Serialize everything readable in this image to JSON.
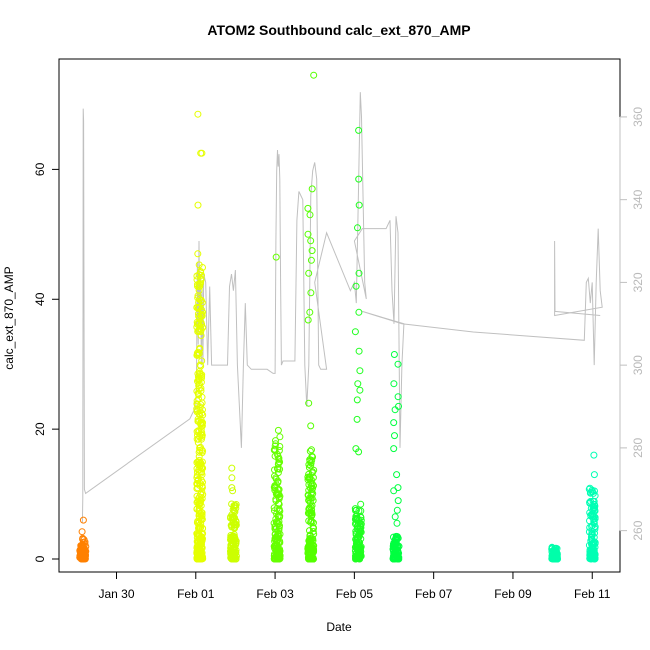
{
  "chart_data": {
    "type": "scatter",
    "title": "ATOM2 Southbound calc_ext_870_AMP",
    "xlabel": "Date",
    "ylabel": "calc_ext_870_AMP",
    "x_tick_labels": [
      "Jan 30",
      "Feb 01",
      "Feb 03",
      "Feb 05",
      "Feb 07",
      "Feb 09",
      "Feb 11"
    ],
    "x_tick_days": [
      0,
      2,
      4,
      6,
      8,
      10,
      12
    ],
    "x_range_days": [
      -1.45,
      12.7
    ],
    "ylim": [
      -2,
      77
    ],
    "y_ticks": [
      0,
      20,
      40,
      60
    ],
    "right_axis": {
      "ylim": [
        250,
        374
      ],
      "ticks": [
        260,
        280,
        300,
        320,
        340,
        360
      ],
      "color": "#c0c0c0"
    },
    "clusters": [
      {
        "day": -0.85,
        "width": 0.18,
        "color": "#ff8000",
        "dense_max": 3.2,
        "outliers": [
          6.0,
          4.2
        ]
      },
      {
        "day": 2.1,
        "width": 0.25,
        "color": "#e5ff00",
        "dense_max": 46,
        "outliers": [
          68.5,
          62.5,
          62.5,
          54.5,
          47,
          43,
          40,
          39.5,
          20.5
        ]
      },
      {
        "day": 2.95,
        "width": 0.25,
        "color": "#ccff00",
        "dense_max": 9,
        "outliers": [
          14,
          12.5,
          11,
          10.5
        ]
      },
      {
        "day": 4.05,
        "width": 0.2,
        "color": "#66ff00",
        "dense_max": 19,
        "outliers": [
          19.8,
          46.5
        ]
      },
      {
        "day": 4.9,
        "width": 0.3,
        "color": "#55ff00",
        "dense_max": 17,
        "outliers": [
          74.5,
          57,
          54,
          53,
          50,
          49,
          47.5,
          46,
          44,
          41,
          38,
          36.8,
          24,
          20.5
        ]
      },
      {
        "day": 6.1,
        "width": 0.2,
        "color": "#20ff20",
        "dense_max": 8.5,
        "outliers": [
          66,
          58.5,
          54.5,
          51,
          44,
          42,
          38,
          35,
          32,
          29,
          27,
          26,
          24.5,
          21.5,
          17,
          16.5
        ]
      },
      {
        "day": 7.05,
        "width": 0.2,
        "color": "#00ff40",
        "dense_max": 3.5,
        "outliers": [
          31.5,
          30,
          27,
          25,
          23.5,
          23,
          21,
          19,
          17,
          13,
          11,
          10.5,
          9,
          7.5,
          6.5,
          5.5
        ]
      },
      {
        "day": 11.05,
        "width": 0.1,
        "color": "#00ffaa",
        "dense_max": 1.8,
        "outliers": []
      },
      {
        "day": 12.0,
        "width": 0.3,
        "color": "#00ffb4",
        "dense_max": 11,
        "outliers": [
          16,
          13
        ]
      }
    ],
    "line_series": {
      "name": "right-axis trace",
      "color": "#c0c0c0",
      "points": [
        [
          -0.86,
          262
        ],
        [
          -0.85,
          268
        ],
        [
          -0.84,
          362
        ],
        [
          -0.83,
          359
        ],
        [
          -0.81,
          270
        ],
        [
          -0.78,
          269
        ],
        [
          1.85,
          287
        ],
        [
          2.0,
          290
        ],
        [
          2.02,
          300
        ],
        [
          2.04,
          325
        ],
        [
          2.06,
          305
        ],
        [
          2.08,
          330
        ],
        [
          2.1,
          310
        ],
        [
          2.12,
          322
        ],
        [
          2.14,
          300
        ],
        [
          2.16,
          319
        ],
        [
          2.18,
          300
        ],
        [
          2.2,
          322
        ],
        [
          2.25,
          320
        ],
        [
          2.3,
          300
        ],
        [
          2.35,
          319
        ],
        [
          2.4,
          300
        ],
        [
          2.5,
          300
        ],
        [
          2.8,
          300
        ],
        [
          2.85,
          319
        ],
        [
          2.9,
          322
        ],
        [
          2.95,
          318
        ],
        [
          3.0,
          323
        ],
        [
          3.05,
          300
        ],
        [
          3.1,
          290
        ],
        [
          3.15,
          280
        ],
        [
          3.2,
          300
        ],
        [
          3.25,
          315
        ],
        [
          3.3,
          300
        ],
        [
          3.4,
          299
        ],
        [
          3.8,
          299
        ],
        [
          3.95,
          298
        ],
        [
          4.0,
          298
        ],
        [
          4.02,
          330
        ],
        [
          4.04,
          347
        ],
        [
          4.06,
          352
        ],
        [
          4.08,
          348
        ],
        [
          4.1,
          351
        ],
        [
          4.12,
          345
        ],
        [
          4.14,
          320
        ],
        [
          4.16,
          300
        ],
        [
          4.2,
          301
        ],
        [
          4.5,
          301
        ],
        [
          4.55,
          335
        ],
        [
          4.6,
          342
        ],
        [
          4.65,
          341
        ],
        [
          4.7,
          340
        ],
        [
          4.75,
          300
        ],
        [
          4.8,
          290
        ],
        [
          4.85,
          300
        ],
        [
          4.9,
          341
        ],
        [
          4.95,
          347
        ],
        [
          5.0,
          349
        ],
        [
          5.05,
          345
        ],
        [
          5.1,
          300
        ],
        [
          5.15,
          299
        ],
        [
          5.3,
          299
        ],
        [
          5.0,
          320
        ],
        [
          5.3,
          332
        ],
        [
          5.6,
          325
        ],
        [
          5.9,
          318
        ],
        [
          6.0,
          320
        ],
        [
          6.05,
          315
        ],
        [
          6.1,
          340
        ],
        [
          6.15,
          366
        ],
        [
          6.18,
          360
        ],
        [
          6.22,
          340
        ],
        [
          6.26,
          320
        ],
        [
          6.3,
          316
        ],
        [
          6.0,
          330
        ],
        [
          6.2,
          333
        ],
        [
          6.8,
          333
        ],
        [
          6.9,
          335
        ],
        [
          6.95,
          318
        ],
        [
          7.0,
          310
        ],
        [
          7.05,
          336
        ],
        [
          7.1,
          332
        ],
        [
          7.15,
          280
        ],
        [
          7.2,
          300
        ],
        [
          7.25,
          310
        ],
        [
          6.2,
          313
        ],
        [
          7.2,
          310
        ],
        [
          9.0,
          308
        ],
        [
          11.8,
          306
        ],
        [
          11.85,
          320
        ],
        [
          11.9,
          321
        ],
        [
          11.95,
          315
        ],
        [
          12.0,
          320
        ],
        [
          12.05,
          300
        ],
        [
          12.1,
          320
        ],
        [
          12.15,
          333
        ],
        [
          12.2,
          318
        ],
        [
          12.25,
          314
        ],
        [
          11.05,
          312
        ],
        [
          11.05,
          330
        ],
        [
          11.06,
          313
        ],
        [
          12.2,
          312
        ]
      ]
    }
  }
}
